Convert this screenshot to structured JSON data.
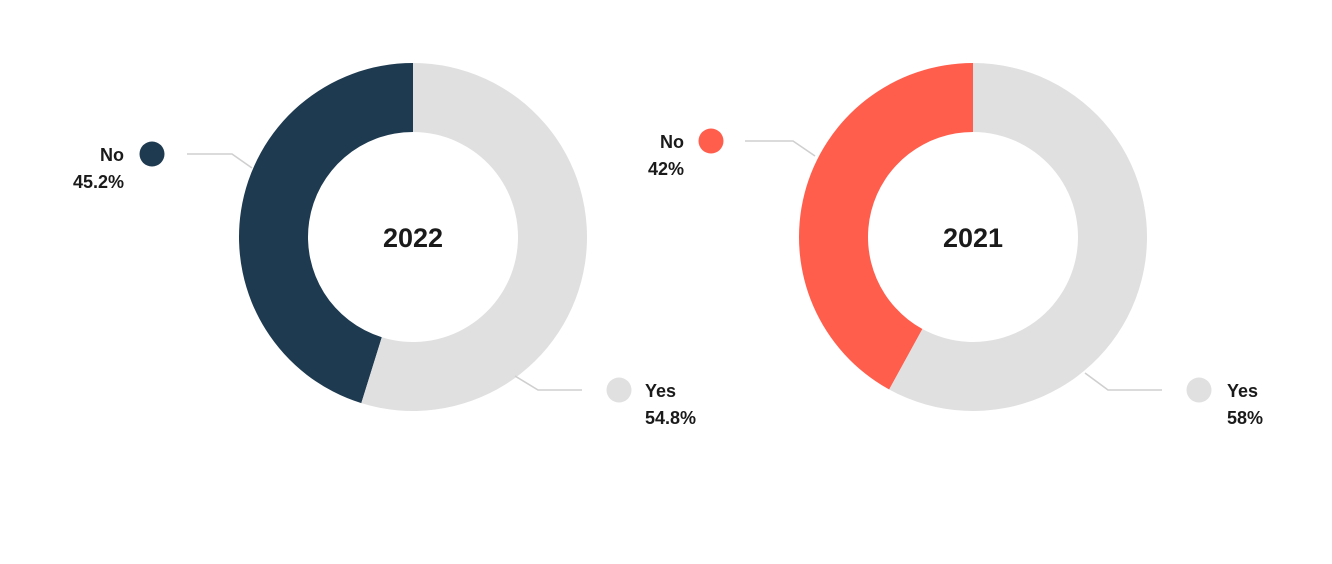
{
  "chart_data": [
    {
      "type": "pie",
      "center_label": "2022",
      "slices": [
        {
          "label": "No",
          "value": 45.2,
          "value_label": "45.2%",
          "color": "#1e3a50"
        },
        {
          "label": "Yes",
          "value": 54.8,
          "value_label": "54.8%",
          "color": "#e0e0e0"
        }
      ]
    },
    {
      "type": "pie",
      "center_label": "2021",
      "slices": [
        {
          "label": "No",
          "value": 42,
          "value_label": "42%",
          "color": "#ff5e4d"
        },
        {
          "label": "Yes",
          "value": 58,
          "value_label": "58%",
          "color": "#e0e0e0"
        }
      ]
    }
  ]
}
